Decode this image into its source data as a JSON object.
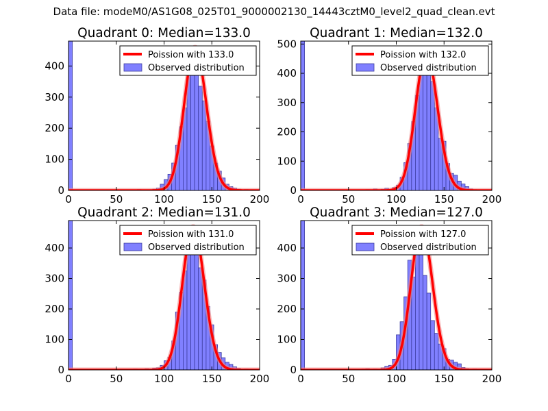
{
  "suptitle": "Data file: modeM0/AS1G08_025T01_9000002130_14443cztM0_level2_quad_clean.evt",
  "colors": {
    "bar_fill": "#8080ff",
    "bar_edge": "#3b3b9e",
    "curve": "#ff0000",
    "curve_outline": "#f08a8a",
    "axis": "#000000",
    "legend_edge": "#000000"
  },
  "chart_data": [
    {
      "type": "bar",
      "title": "Quadrant 0: Median=133.0",
      "xlim": [
        0,
        200
      ],
      "ylim": [
        0,
        480
      ],
      "xticks": [
        0,
        50,
        100,
        150,
        200
      ],
      "yticks": [
        0,
        100,
        200,
        300,
        400
      ],
      "bin_width": 4,
      "bins": [
        {
          "x": 0,
          "y": 480
        },
        {
          "x": 72,
          "y": 3
        },
        {
          "x": 80,
          "y": 2
        },
        {
          "x": 88,
          "y": 4
        },
        {
          "x": 92,
          "y": 8
        },
        {
          "x": 96,
          "y": 20
        },
        {
          "x": 100,
          "y": 35
        },
        {
          "x": 104,
          "y": 52
        },
        {
          "x": 108,
          "y": 88
        },
        {
          "x": 112,
          "y": 145
        },
        {
          "x": 116,
          "y": 205
        },
        {
          "x": 120,
          "y": 265
        },
        {
          "x": 124,
          "y": 380
        },
        {
          "x": 128,
          "y": 420
        },
        {
          "x": 132,
          "y": 378
        },
        {
          "x": 136,
          "y": 335
        },
        {
          "x": 140,
          "y": 288
        },
        {
          "x": 144,
          "y": 222
        },
        {
          "x": 148,
          "y": 143
        },
        {
          "x": 152,
          "y": 88
        },
        {
          "x": 156,
          "y": 62
        },
        {
          "x": 160,
          "y": 40
        },
        {
          "x": 164,
          "y": 20
        },
        {
          "x": 168,
          "y": 12
        },
        {
          "x": 172,
          "y": 8
        },
        {
          "x": 176,
          "y": 4
        },
        {
          "x": 184,
          "y": 3
        },
        {
          "x": 188,
          "y": 2
        }
      ],
      "curve": {
        "type": "poisson",
        "mean": 133.0,
        "peak": 460
      },
      "legend": {
        "curve_label": "Poission with 133.0",
        "bar_label": "Observed distribution",
        "position": "upper right"
      }
    },
    {
      "type": "bar",
      "title": "Quadrant 1: Median=132.0",
      "xlim": [
        0,
        200
      ],
      "ylim": [
        0,
        510
      ],
      "xticks": [
        0,
        50,
        100,
        150,
        200
      ],
      "yticks": [
        0,
        100,
        200,
        300,
        400,
        500
      ],
      "bin_width": 4,
      "bins": [
        {
          "x": 0,
          "y": 510
        },
        {
          "x": 68,
          "y": 3
        },
        {
          "x": 76,
          "y": 5
        },
        {
          "x": 84,
          "y": 4
        },
        {
          "x": 88,
          "y": 8
        },
        {
          "x": 96,
          "y": 10
        },
        {
          "x": 100,
          "y": 18
        },
        {
          "x": 104,
          "y": 45
        },
        {
          "x": 108,
          "y": 95
        },
        {
          "x": 112,
          "y": 160
        },
        {
          "x": 116,
          "y": 235
        },
        {
          "x": 120,
          "y": 325
        },
        {
          "x": 124,
          "y": 410
        },
        {
          "x": 128,
          "y": 450
        },
        {
          "x": 132,
          "y": 405
        },
        {
          "x": 136,
          "y": 372
        },
        {
          "x": 140,
          "y": 282
        },
        {
          "x": 144,
          "y": 178
        },
        {
          "x": 148,
          "y": 168
        },
        {
          "x": 152,
          "y": 92
        },
        {
          "x": 156,
          "y": 58
        },
        {
          "x": 160,
          "y": 52
        },
        {
          "x": 164,
          "y": 32
        },
        {
          "x": 168,
          "y": 22
        },
        {
          "x": 172,
          "y": 13
        },
        {
          "x": 176,
          "y": 5
        },
        {
          "x": 180,
          "y": 3
        }
      ],
      "curve": {
        "type": "poisson",
        "mean": 132.0,
        "peak": 470
      },
      "legend": {
        "curve_label": "Poission with 132.0",
        "bar_label": "Observed distribution",
        "position": "upper right"
      }
    },
    {
      "type": "bar",
      "title": "Quadrant 2: Median=131.0",
      "xlim": [
        0,
        200
      ],
      "ylim": [
        0,
        490
      ],
      "xticks": [
        0,
        50,
        100,
        150,
        200
      ],
      "yticks": [
        0,
        100,
        200,
        300,
        400
      ],
      "bin_width": 4,
      "bins": [
        {
          "x": 0,
          "y": 490
        },
        {
          "x": 68,
          "y": 3
        },
        {
          "x": 80,
          "y": 4
        },
        {
          "x": 88,
          "y": 6
        },
        {
          "x": 92,
          "y": 7
        },
        {
          "x": 96,
          "y": 15
        },
        {
          "x": 100,
          "y": 30
        },
        {
          "x": 104,
          "y": 42
        },
        {
          "x": 108,
          "y": 95
        },
        {
          "x": 112,
          "y": 190
        },
        {
          "x": 116,
          "y": 255
        },
        {
          "x": 120,
          "y": 325
        },
        {
          "x": 124,
          "y": 450
        },
        {
          "x": 128,
          "y": 402
        },
        {
          "x": 132,
          "y": 378
        },
        {
          "x": 136,
          "y": 335
        },
        {
          "x": 140,
          "y": 295
        },
        {
          "x": 144,
          "y": 208
        },
        {
          "x": 148,
          "y": 148
        },
        {
          "x": 152,
          "y": 83
        },
        {
          "x": 156,
          "y": 57
        },
        {
          "x": 160,
          "y": 40
        },
        {
          "x": 164,
          "y": 25
        },
        {
          "x": 168,
          "y": 18
        },
        {
          "x": 172,
          "y": 10
        },
        {
          "x": 176,
          "y": 5
        },
        {
          "x": 184,
          "y": 3
        }
      ],
      "curve": {
        "type": "poisson",
        "mean": 131.0,
        "peak": 470
      },
      "legend": {
        "curve_label": "Poission with 131.0",
        "bar_label": "Observed distribution",
        "position": "upper right"
      }
    },
    {
      "type": "bar",
      "title": "Quadrant 3: Median=127.0",
      "xlim": [
        0,
        200
      ],
      "ylim": [
        0,
        490
      ],
      "xticks": [
        0,
        50,
        100,
        150,
        200
      ],
      "yticks": [
        0,
        100,
        200,
        300,
        400
      ],
      "bin_width": 4,
      "bins": [
        {
          "x": 0,
          "y": 490
        },
        {
          "x": 64,
          "y": 3
        },
        {
          "x": 68,
          "y": 4
        },
        {
          "x": 76,
          "y": 3
        },
        {
          "x": 84,
          "y": 7
        },
        {
          "x": 88,
          "y": 12
        },
        {
          "x": 92,
          "y": 15
        },
        {
          "x": 96,
          "y": 35
        },
        {
          "x": 100,
          "y": 115
        },
        {
          "x": 104,
          "y": 158
        },
        {
          "x": 108,
          "y": 240
        },
        {
          "x": 112,
          "y": 360
        },
        {
          "x": 116,
          "y": 305
        },
        {
          "x": 120,
          "y": 420
        },
        {
          "x": 124,
          "y": 410
        },
        {
          "x": 128,
          "y": 310
        },
        {
          "x": 132,
          "y": 252
        },
        {
          "x": 136,
          "y": 162
        },
        {
          "x": 140,
          "y": 120
        },
        {
          "x": 144,
          "y": 85
        },
        {
          "x": 148,
          "y": 70
        },
        {
          "x": 152,
          "y": 35
        },
        {
          "x": 156,
          "y": 32
        },
        {
          "x": 160,
          "y": 25
        },
        {
          "x": 164,
          "y": 20
        },
        {
          "x": 168,
          "y": 8
        },
        {
          "x": 172,
          "y": 4
        },
        {
          "x": 180,
          "y": 3
        }
      ],
      "curve": {
        "type": "poisson",
        "mean": 127.0,
        "peak": 470
      },
      "legend": {
        "curve_label": "Poission with 127.0",
        "bar_label": "Observed distribution",
        "position": "upper right"
      }
    }
  ]
}
